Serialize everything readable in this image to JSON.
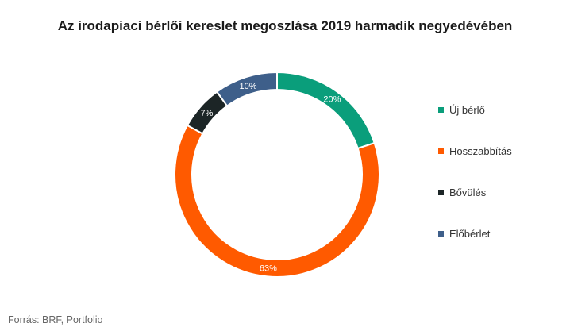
{
  "chart_data": {
    "type": "pie",
    "variant": "donut",
    "title": "Az irodapiaci bérlői kereslet megoszlása 2019 harmadik negyedévében",
    "slices": [
      {
        "label": "Új bérlő",
        "value": 20,
        "value_label": "20%",
        "color": "#0a9e7b"
      },
      {
        "label": "Hosszabbítás",
        "value": 63,
        "value_label": "63%",
        "color": "#ff5a00"
      },
      {
        "label": "Bővülés",
        "value": 7,
        "value_label": "7%",
        "color": "#1c2526"
      },
      {
        "label": "Előbérlet",
        "value": 10,
        "value_label": "10%",
        "color": "#3e5f8a"
      }
    ],
    "legend_position": "right",
    "start_angle": "top, clockwise"
  },
  "source": "Forrás: BRF, Portfolio"
}
